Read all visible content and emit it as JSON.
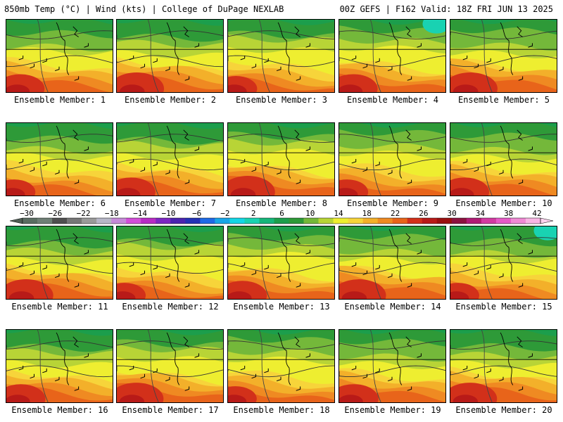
{
  "header": {
    "left": "850mb Temp (°C) | Wind (kts) | College of DuPage NEXLAB",
    "right": "00Z GEFS | F162 Valid: 18Z FRI JUN 13 2025"
  },
  "panels": [
    {
      "label": "Ensemble Member: 1"
    },
    {
      "label": "Ensemble Member: 2"
    },
    {
      "label": "Ensemble Member: 3"
    },
    {
      "label": "Ensemble Member: 4"
    },
    {
      "label": "Ensemble Member: 5"
    },
    {
      "label": "Ensemble Member: 6"
    },
    {
      "label": "Ensemble Member: 7"
    },
    {
      "label": "Ensemble Member: 8"
    },
    {
      "label": "Ensemble Member: 9"
    },
    {
      "label": "Ensemble Member: 10"
    },
    {
      "label": "Ensemble Member: 11"
    },
    {
      "label": "Ensemble Member: 12"
    },
    {
      "label": "Ensemble Member: 13"
    },
    {
      "label": "Ensemble Member: 14"
    },
    {
      "label": "Ensemble Member: 15"
    },
    {
      "label": "Ensemble Member: 16"
    },
    {
      "label": "Ensemble Member: 17"
    },
    {
      "label": "Ensemble Member: 18"
    },
    {
      "label": "Ensemble Member: 19"
    },
    {
      "label": "Ensemble Member: 20"
    }
  ],
  "colorbar": {
    "labels": [
      "−30",
      "−26",
      "−22",
      "−18",
      "−14",
      "−10",
      "−6",
      "−2",
      "2",
      "6",
      "10",
      "14",
      "18",
      "22",
      "26",
      "30",
      "34",
      "38",
      "42"
    ],
    "colors": [
      "#5a6d62",
      "#6f7f76",
      "#4f4f4f",
      "#777777",
      "#9a9a9a",
      "#b7b7c7",
      "#c58ad8",
      "#d24ed8",
      "#b82bc4",
      "#7d27c2",
      "#4b24b0",
      "#2432b6",
      "#1e6ae6",
      "#18a6e8",
      "#14d6e6",
      "#19d2b2",
      "#16b67a",
      "#1c9e4c",
      "#2e9a38",
      "#74b83a",
      "#b8d436",
      "#eeee30",
      "#f7d43a",
      "#f3b02a",
      "#ef8a22",
      "#e8641a",
      "#d2301a",
      "#b81a18",
      "#9a1010",
      "#8c1240",
      "#b01c76",
      "#d23aa2",
      "#e65ac6",
      "#f08ad4",
      "#f8b6e4"
    ]
  }
}
